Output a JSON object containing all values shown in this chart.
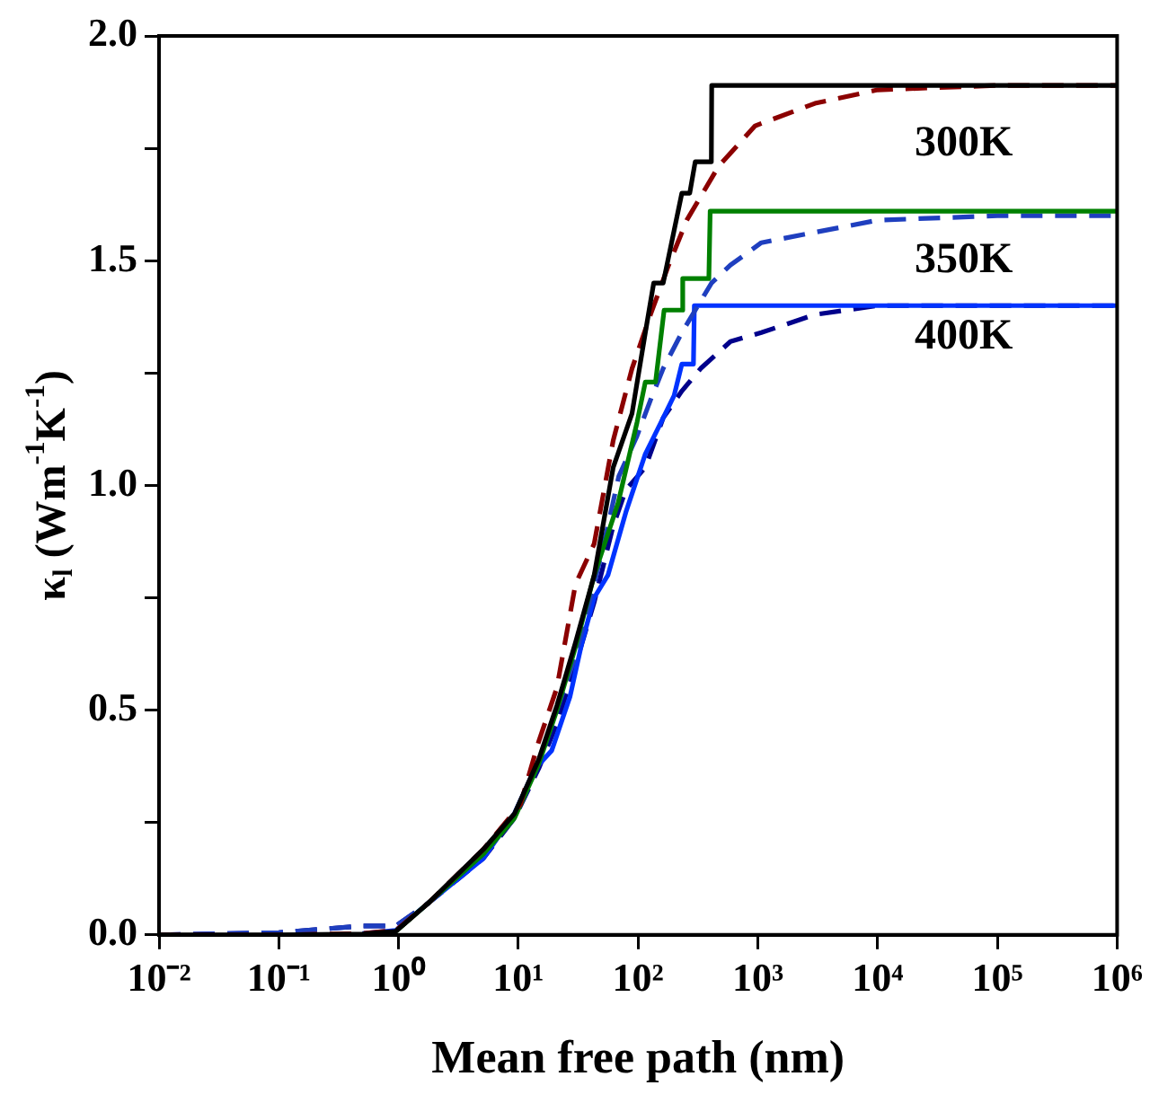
{
  "chart_data": {
    "type": "line",
    "xlabel": "Mean free path (nm)",
    "ylabel": "κ$_{l}$ (Wm$^{-1}$K$^{-1}$)",
    "log": "x",
    "grid": false,
    "legend": false,
    "xlim": [
      0.01,
      1000000
    ],
    "ylim": [
      0,
      2
    ],
    "xticks": [
      {
        "value": 0.01,
        "label": "10⁻²"
      },
      {
        "value": 0.1,
        "label": "10⁻¹"
      },
      {
        "value": 1,
        "label": "10⁰"
      },
      {
        "value": 10,
        "label": "10¹"
      },
      {
        "value": 100,
        "label": "10²"
      },
      {
        "value": 1000,
        "label": "10³"
      },
      {
        "value": 10000,
        "label": "10⁴"
      },
      {
        "value": 100000,
        "label": "10⁵"
      },
      {
        "value": 1000000,
        "label": "10⁶"
      }
    ],
    "yticks": [
      {
        "value": 0,
        "label": "0.0"
      },
      {
        "value": 0.25,
        "label": null
      },
      {
        "value": 0.5,
        "label": "0.5"
      },
      {
        "value": 0.75,
        "label": null
      },
      {
        "value": 1,
        "label": "1.0"
      },
      {
        "value": 1.25,
        "label": null
      },
      {
        "value": 1.5,
        "label": "1.5"
      },
      {
        "value": 1.75,
        "label": null
      },
      {
        "value": 2,
        "label": "2.0"
      }
    ],
    "series": [
      {
        "color": "#000000",
        "line_style": "solid",
        "x": [
          0.01,
          0.1,
          0.5,
          0.95,
          1.76,
          5.1,
          9.3,
          14.8,
          21,
          30,
          43,
          62,
          89,
          115,
          135,
          162,
          232,
          270,
          300,
          409,
          412,
          1000000
        ],
        "values": [
          0,
          0,
          0.002,
          0.008,
          0.07,
          0.19,
          0.27,
          0.39,
          0.51,
          0.65,
          0.8,
          1.04,
          1.16,
          1.34,
          1.45,
          1.45,
          1.65,
          1.65,
          1.72,
          1.72,
          1.89,
          1.89
        ]
      },
      {
        "color": "#8b0000",
        "line_style": "dashed",
        "x": [
          0.01,
          0.1,
          0.5,
          0.95,
          1.76,
          5.1,
          10.4,
          14.8,
          21,
          30,
          43,
          62,
          89,
          127,
          180,
          255,
          470,
          950,
          3000,
          10000,
          100000,
          1000000
        ],
        "values": [
          0,
          0,
          0.003,
          0.01,
          0.07,
          0.19,
          0.29,
          0.43,
          0.55,
          0.78,
          0.87,
          1.1,
          1.26,
          1.38,
          1.49,
          1.59,
          1.71,
          1.8,
          1.85,
          1.88,
          1.89,
          1.89
        ]
      },
      {
        "color": "#008000",
        "line_style": "solid",
        "x": [
          0.95,
          1.76,
          5.1,
          9.3,
          14.8,
          21,
          30,
          43,
          68,
          98,
          115,
          140,
          165,
          232,
          236,
          390,
          400,
          1000000
        ],
        "values": [
          0.008,
          0.07,
          0.18,
          0.26,
          0.38,
          0.5,
          0.64,
          0.8,
          0.96,
          1.14,
          1.23,
          1.23,
          1.39,
          1.39,
          1.46,
          1.46,
          1.61,
          1.61
        ]
      },
      {
        "color": "#1f3fbf",
        "line_style": "dashed",
        "x": [
          0.01,
          0.1,
          0.5,
          0.95,
          1.76,
          5.1,
          9.3,
          14.8,
          21,
          30,
          43,
          56,
          69,
          98,
          127,
          162,
          232,
          410,
          590,
          1070,
          10000,
          100000,
          1000000
        ],
        "values": [
          0,
          0.005,
          0.02,
          0.02,
          0.07,
          0.18,
          0.26,
          0.38,
          0.5,
          0.62,
          0.78,
          0.91,
          1.02,
          1.11,
          1.19,
          1.26,
          1.34,
          1.45,
          1.49,
          1.54,
          1.59,
          1.6,
          1.6
        ]
      },
      {
        "color": "#0033ff",
        "line_style": "solid",
        "x": [
          0.5,
          0.95,
          1.76,
          5.1,
          9.3,
          13.8,
          19,
          27,
          34,
          43,
          56,
          79,
          115,
          162,
          200,
          232,
          290,
          295,
          1000000
        ],
        "values": [
          0.003,
          0.01,
          0.07,
          0.17,
          0.27,
          0.37,
          0.41,
          0.53,
          0.65,
          0.75,
          0.8,
          0.94,
          1.07,
          1.15,
          1.2,
          1.27,
          1.27,
          1.4,
          1.4
        ]
      },
      {
        "color": "#00008b",
        "line_style": "dashed",
        "x": [
          0.01,
          0.1,
          0.5,
          0.95,
          1.76,
          5.1,
          9.3,
          14.8,
          21,
          30,
          43,
          62,
          79,
          115,
          162,
          232,
          333,
          590,
          1070,
          3000,
          10000,
          100000,
          1000000
        ],
        "values": [
          0,
          0.005,
          0.02,
          0.02,
          0.07,
          0.17,
          0.26,
          0.37,
          0.47,
          0.6,
          0.74,
          0.91,
          0.99,
          1.04,
          1.15,
          1.21,
          1.26,
          1.32,
          1.34,
          1.38,
          1.4,
          1.4,
          1.4
        ]
      }
    ],
    "annotations": [
      "300K",
      "350K",
      "400K"
    ]
  }
}
